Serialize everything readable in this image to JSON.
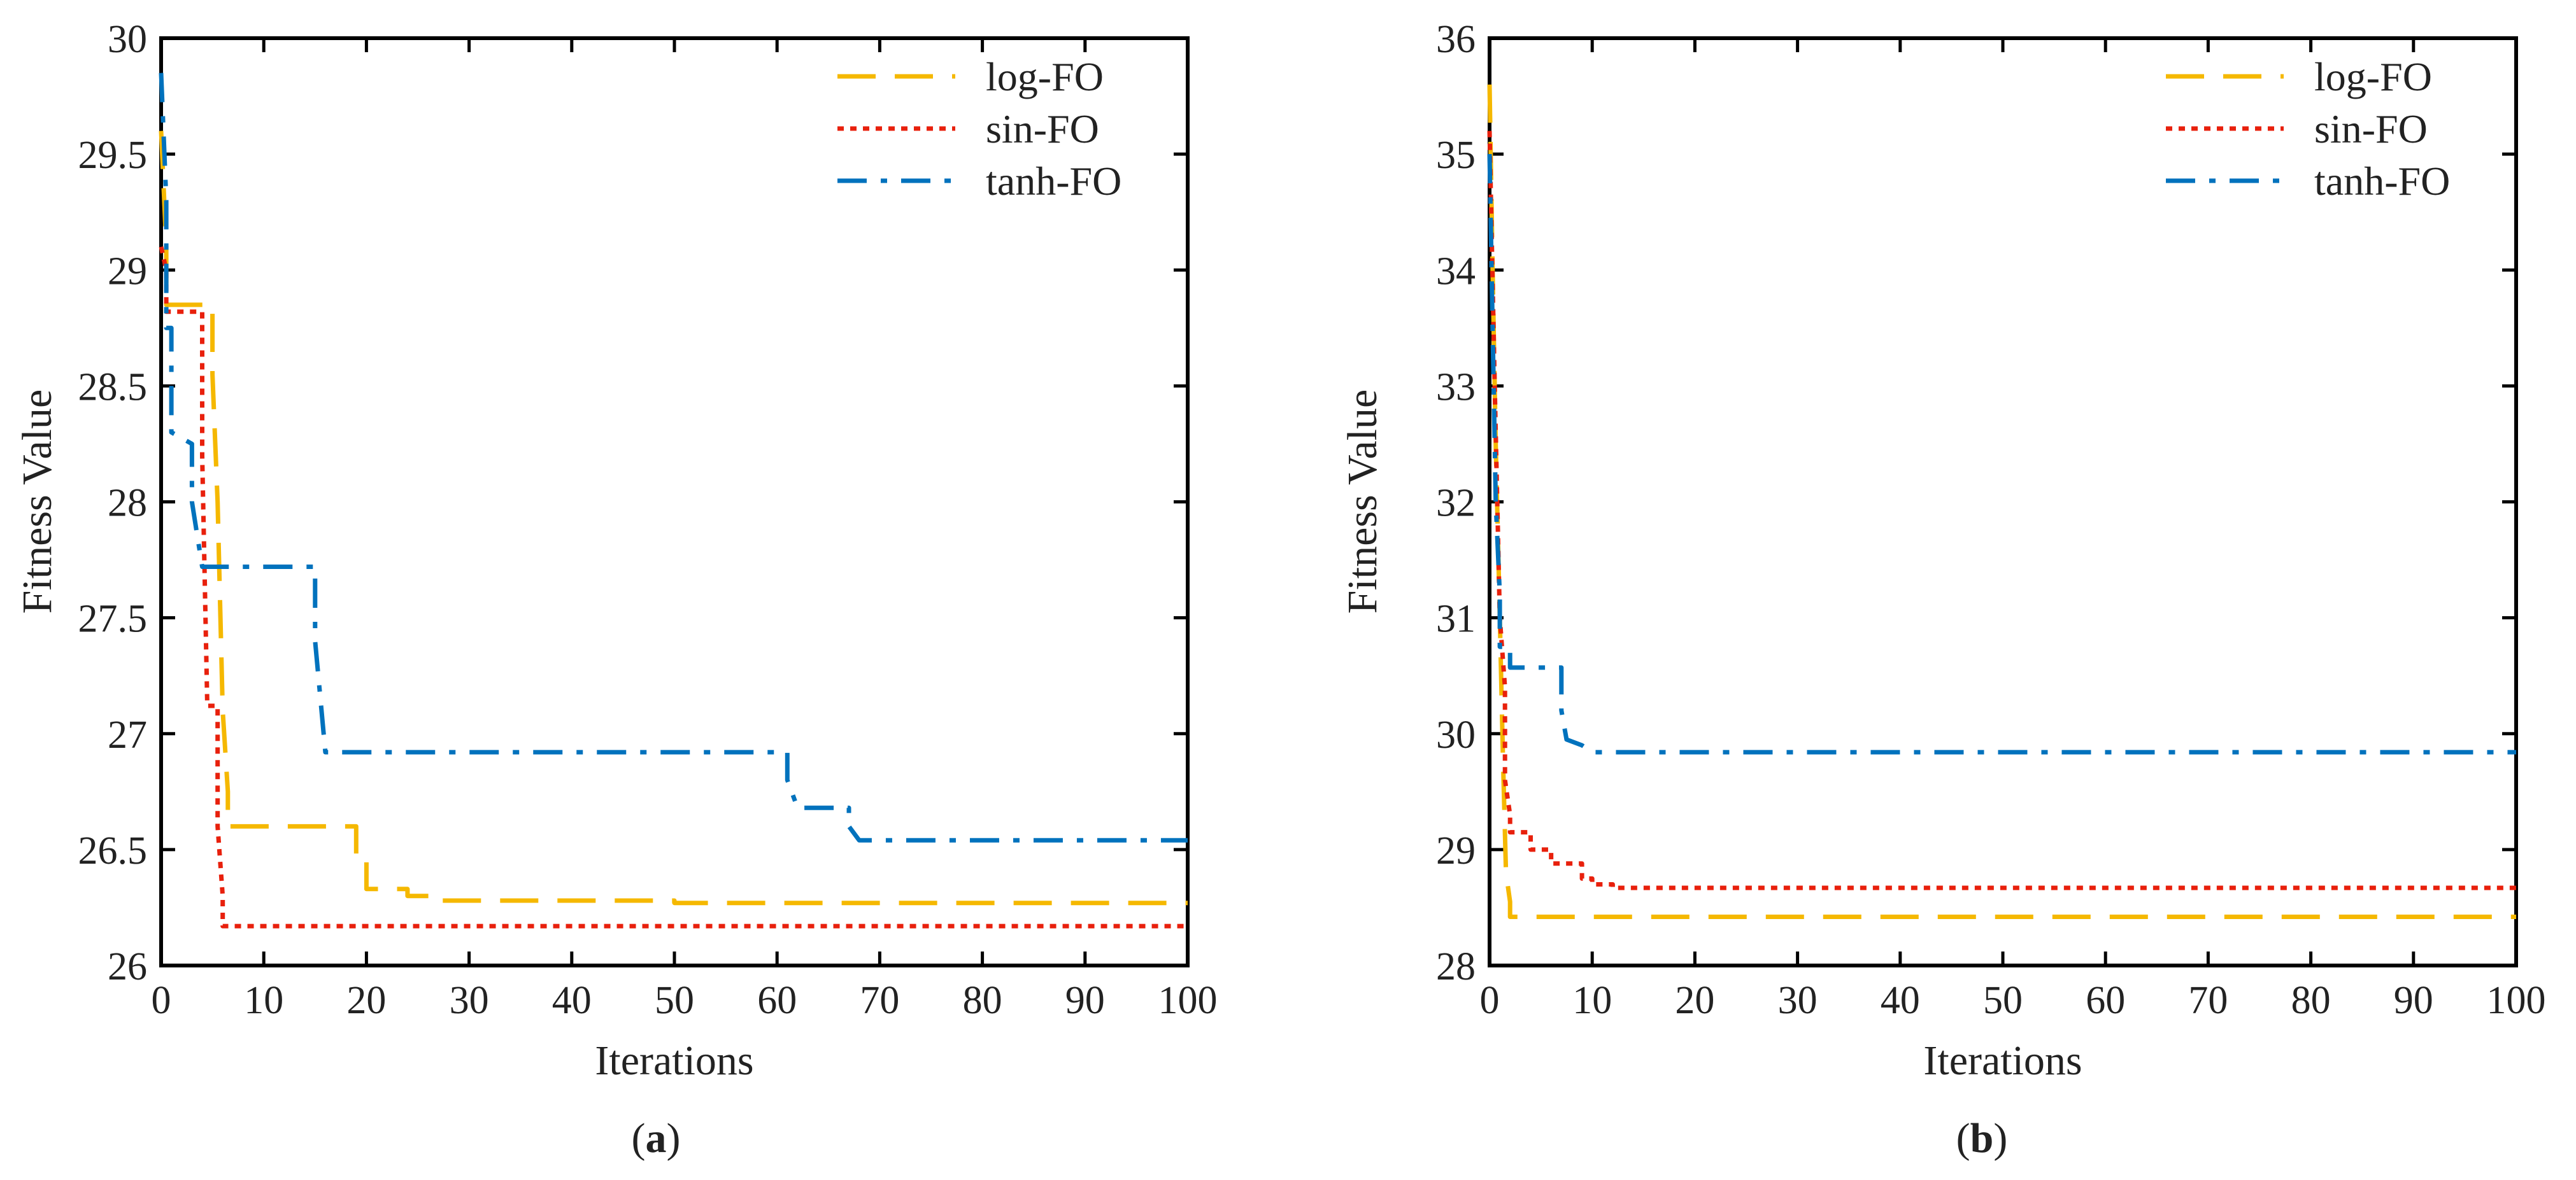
{
  "chart_data": [
    {
      "type": "line",
      "panel_label": "a",
      "title": "",
      "xlabel": "Iterations",
      "ylabel": "Fitness Value",
      "xlim": [
        0,
        100
      ],
      "ylim": [
        26,
        30
      ],
      "xticks": [
        0,
        10,
        20,
        30,
        40,
        50,
        60,
        70,
        80,
        90,
        100
      ],
      "yticks": [
        26,
        26.5,
        27,
        27.5,
        28,
        28.5,
        29,
        29.5,
        30
      ],
      "ytick_labels": [
        "26",
        "26.5",
        "27",
        "27.5",
        "28",
        "28.5",
        "29",
        "29.5",
        "30"
      ],
      "legend_position": "top-right",
      "series": [
        {
          "name": "log-FO",
          "color": "#F5B800",
          "dash": "dashed",
          "x": [
            0,
            0.5,
            0.5,
            5,
            5,
            5.5,
            6,
            6.5,
            6.5,
            7,
            7,
            19,
            19,
            20,
            20,
            24,
            24,
            27,
            27,
            50,
            50,
            100
          ],
          "y": [
            29.6,
            29.1,
            28.85,
            28.85,
            28.55,
            28.0,
            27.1,
            26.75,
            26.6,
            26.6,
            26.6,
            26.6,
            26.45,
            26.45,
            26.33,
            26.33,
            26.3,
            26.3,
            26.28,
            26.28,
            26.27,
            26.27
          ]
        },
        {
          "name": "sin-FO",
          "color": "#E8200C",
          "dash": "dotted",
          "x": [
            0,
            0.5,
            0.5,
            4,
            4,
            4.5,
            4.5,
            5.5,
            5.5,
            6,
            6,
            100
          ],
          "y": [
            29.1,
            29.0,
            28.82,
            28.82,
            28.2,
            27.12,
            27.12,
            27.12,
            26.6,
            26.3,
            26.17,
            26.17
          ]
        },
        {
          "name": "tanh-FO",
          "color": "#0072BD",
          "dash": "dash-dot",
          "x": [
            0,
            0.5,
            0.5,
            1,
            1,
            3,
            3,
            4,
            4,
            15,
            15,
            16,
            16,
            61,
            61,
            62,
            62,
            67,
            67,
            68,
            68,
            100
          ],
          "y": [
            29.85,
            29.3,
            28.75,
            28.75,
            28.3,
            28.25,
            28.0,
            27.72,
            27.72,
            27.72,
            27.4,
            26.92,
            26.92,
            26.92,
            26.8,
            26.68,
            26.68,
            26.68,
            26.6,
            26.54,
            26.54,
            26.54
          ]
        }
      ]
    },
    {
      "type": "line",
      "panel_label": "b",
      "title": "",
      "xlabel": "Iterations",
      "ylabel": "Fitness Value",
      "xlim": [
        0,
        100
      ],
      "ylim": [
        28,
        36
      ],
      "xticks": [
        0,
        10,
        20,
        30,
        40,
        50,
        60,
        70,
        80,
        90,
        100
      ],
      "yticks": [
        28,
        29,
        30,
        31,
        32,
        33,
        34,
        35,
        36
      ],
      "ytick_labels": [
        "28",
        "29",
        "30",
        "31",
        "32",
        "33",
        "34",
        "35",
        "36"
      ],
      "legend_position": "top-right",
      "series": [
        {
          "name": "log-FO",
          "color": "#F5B800",
          "dash": "dashed",
          "x": [
            0,
            0.3,
            0.6,
            1.0,
            1.3,
            1.6,
            2,
            2,
            100
          ],
          "y": [
            35.6,
            34.0,
            32.5,
            31.0,
            29.8,
            28.8,
            28.55,
            28.42,
            28.42
          ]
        },
        {
          "name": "sin-FO",
          "color": "#E8200C",
          "dash": "dotted",
          "x": [
            0,
            0.5,
            1,
            1.5,
            1.5,
            2,
            2,
            4,
            4,
            6,
            6,
            9,
            9,
            10,
            10,
            12,
            12,
            14,
            14,
            100
          ],
          "y": [
            35.2,
            33.0,
            31.0,
            30.4,
            29.6,
            29.3,
            29.15,
            29.15,
            29.0,
            29.0,
            28.88,
            28.88,
            28.75,
            28.75,
            28.7,
            28.7,
            28.67,
            28.67,
            28.67,
            28.67
          ]
        },
        {
          "name": "tanh-FO",
          "color": "#0072BD",
          "dash": "dash-dot",
          "x": [
            0,
            0.3,
            0.6,
            1,
            1,
            2,
            2,
            7,
            7,
            7.5,
            7.5,
            9,
            9,
            10,
            10,
            100
          ],
          "y": [
            35.0,
            33.5,
            32.0,
            31.2,
            30.75,
            30.75,
            30.57,
            30.57,
            30.2,
            29.95,
            29.95,
            29.9,
            29.9,
            29.84,
            29.84,
            29.84
          ]
        }
      ]
    }
  ]
}
